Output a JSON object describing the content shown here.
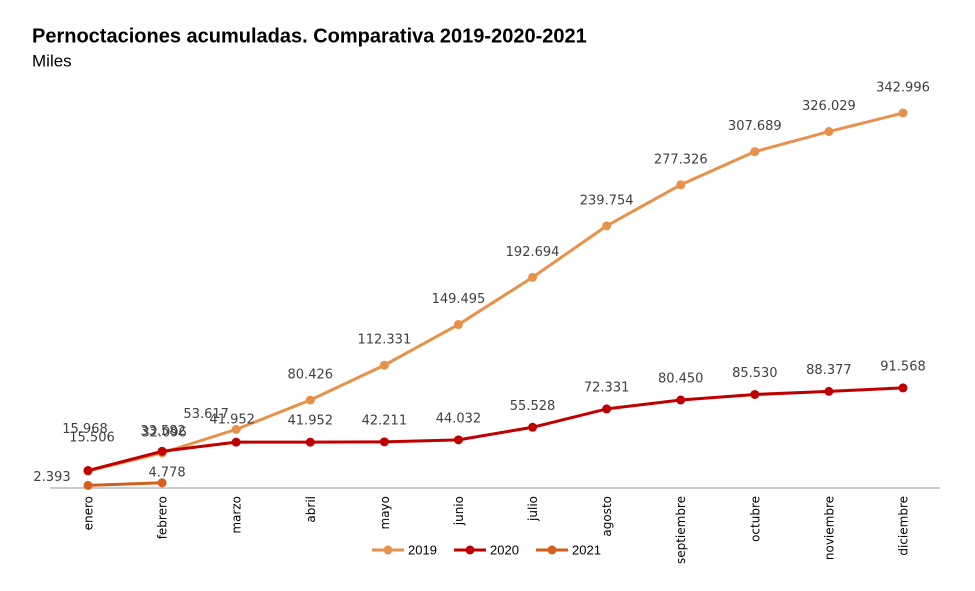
{
  "chart_data": {
    "type": "line",
    "title": "Pernoctaciones acumuladas. Comparativa 2019-2020-2021",
    "subtitle": "Miles",
    "categories": [
      "enero",
      "febrero",
      "marzo",
      "abril",
      "mayo",
      "junio",
      "julio",
      "agosto",
      "septiembre",
      "octubre",
      "noviembre",
      "diciembre"
    ],
    "series": [
      {
        "name": "2019",
        "color": "#e8914a",
        "values": [
          15506,
          32096,
          53617,
          80426,
          112331,
          149495,
          192694,
          239754,
          277326,
          307689,
          326029,
          342996
        ],
        "value_labels": [
          "15.506",
          "32.096",
          "53.617",
          "80.426",
          "112.331",
          "149.495",
          "192.694",
          "239.754",
          "277.326",
          "307.689",
          "326.029",
          "342.996"
        ]
      },
      {
        "name": "2020",
        "color": "#c00000",
        "values": [
          15968,
          33582,
          41952,
          41952,
          42211,
          44032,
          55528,
          72331,
          80450,
          85530,
          88377,
          91568
        ],
        "value_labels": [
          "15.968",
          "33.582",
          "41.952",
          "41.952",
          "42.211",
          "44.032",
          "55.528",
          "72.331",
          "80.450",
          "85.530",
          "88.377",
          "91.568"
        ]
      },
      {
        "name": "2021",
        "color": "#d4601e",
        "values": [
          2393,
          4778,
          null,
          null,
          null,
          null,
          null,
          null,
          null,
          null,
          null,
          null
        ],
        "value_labels": [
          "2.393",
          "4.778",
          null,
          null,
          null,
          null,
          null,
          null,
          null,
          null,
          null,
          null
        ]
      }
    ],
    "legend": "bottom"
  }
}
